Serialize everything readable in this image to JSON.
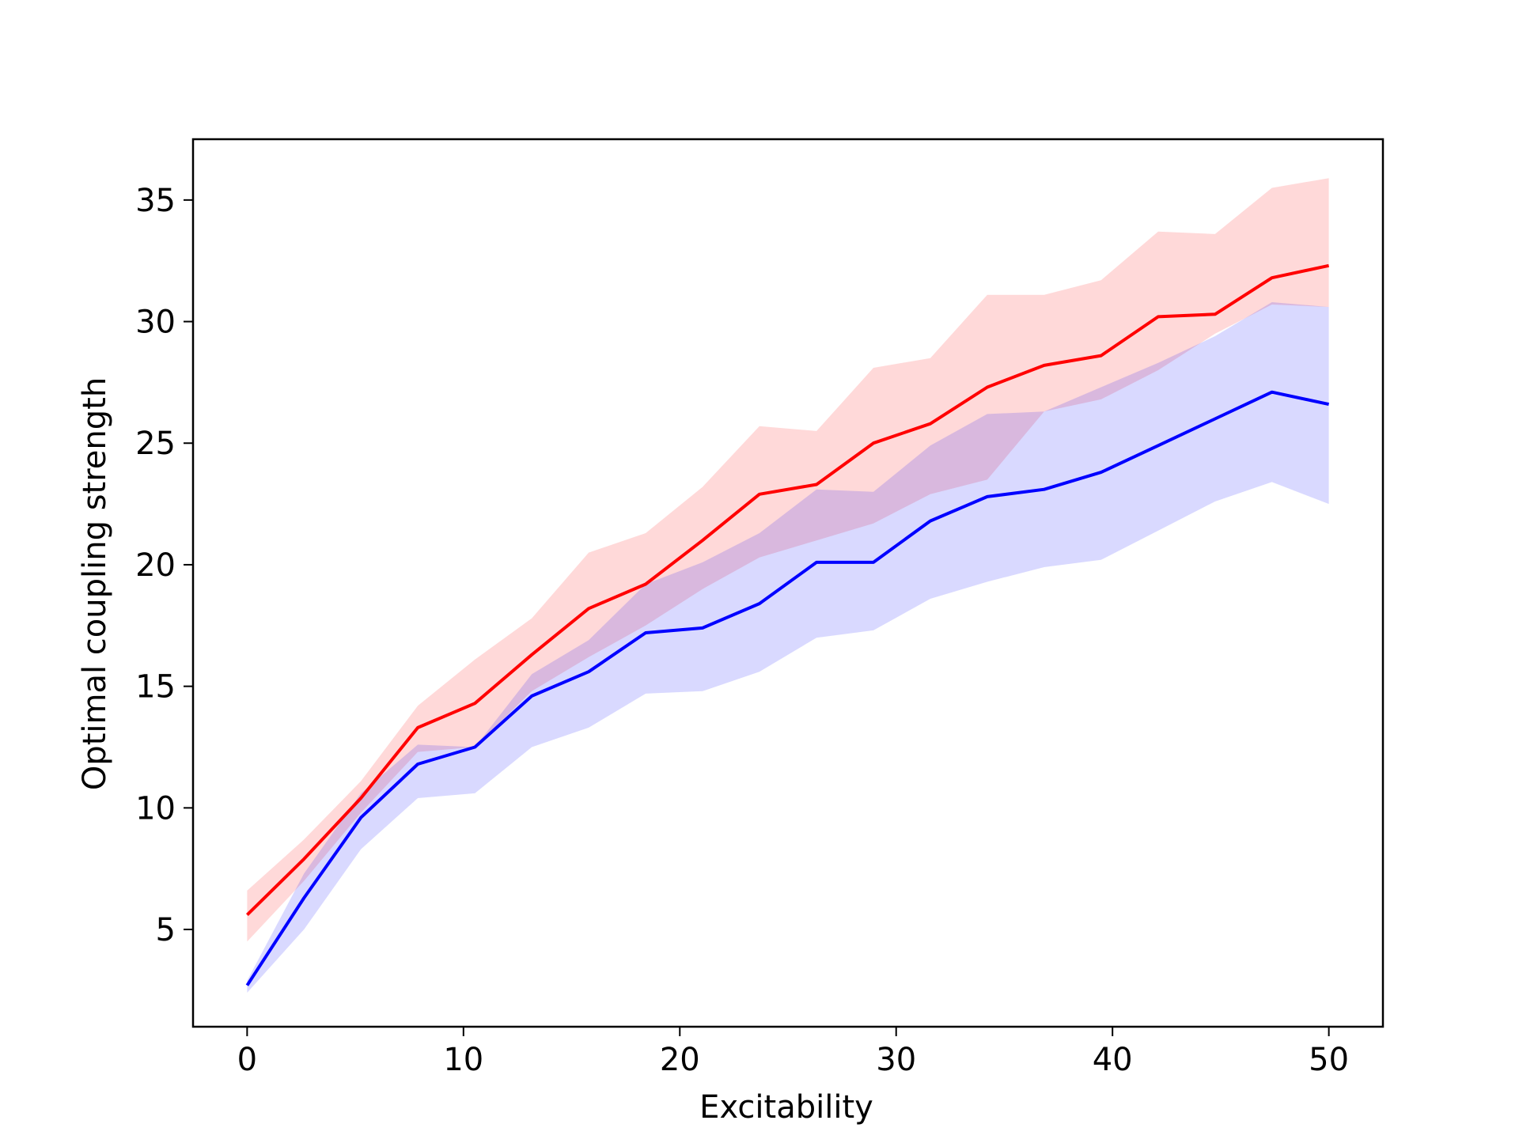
{
  "chart_data": {
    "type": "line",
    "title": "",
    "xlabel": "Excitability",
    "ylabel": "Optimal coupling strength",
    "xlim": [
      -2.5,
      52.5
    ],
    "ylim": [
      1.0,
      37.5
    ],
    "x_ticks": [
      0,
      10,
      20,
      30,
      40,
      50
    ],
    "y_ticks": [
      5,
      10,
      15,
      20,
      25,
      30,
      35
    ],
    "grid": false,
    "legend": "none",
    "x": [
      0,
      2.63,
      5.26,
      7.89,
      10.53,
      13.16,
      15.79,
      18.42,
      21.05,
      23.68,
      26.32,
      28.95,
      31.58,
      34.21,
      36.84,
      39.47,
      42.11,
      44.74,
      47.37,
      50
    ],
    "series": [
      {
        "color": "#ff0000",
        "band_color": "#ff0000",
        "values": [
          5.6,
          7.9,
          10.4,
          13.3,
          14.3,
          16.3,
          18.2,
          19.2,
          21.0,
          22.9,
          23.3,
          25.0,
          25.8,
          27.3,
          28.2,
          28.6,
          30.2,
          30.3,
          31.8,
          32.3
        ],
        "lower": [
          4.5,
          7.0,
          9.8,
          12.3,
          12.5,
          14.8,
          16.2,
          17.5,
          19.0,
          20.3,
          21.0,
          21.7,
          22.9,
          23.5,
          26.3,
          26.8,
          28.0,
          29.5,
          30.7,
          30.6
        ],
        "upper": [
          6.6,
          8.7,
          11.1,
          14.2,
          16.1,
          17.8,
          20.5,
          21.3,
          23.2,
          25.7,
          25.5,
          28.1,
          28.5,
          31.1,
          31.1,
          31.7,
          33.7,
          33.6,
          35.5,
          35.9
        ]
      },
      {
        "color": "#0000ff",
        "band_color": "#0000ff",
        "values": [
          2.7,
          6.3,
          9.6,
          11.8,
          12.5,
          14.6,
          15.6,
          17.2,
          17.4,
          18.4,
          20.1,
          20.1,
          21.8,
          22.8,
          23.1,
          23.8,
          24.9,
          26.0,
          27.1,
          26.6
        ],
        "lower": [
          2.4,
          5.0,
          8.3,
          10.4,
          10.6,
          12.5,
          13.3,
          14.7,
          14.8,
          15.6,
          17.0,
          17.3,
          18.6,
          19.3,
          19.9,
          20.2,
          21.4,
          22.6,
          23.4,
          22.5
        ],
        "upper": [
          2.9,
          7.3,
          10.6,
          12.6,
          12.5,
          15.5,
          16.9,
          19.2,
          20.1,
          21.3,
          23.1,
          23.0,
          24.9,
          26.2,
          26.3,
          27.3,
          28.3,
          29.4,
          30.8,
          30.6
        ]
      }
    ]
  }
}
